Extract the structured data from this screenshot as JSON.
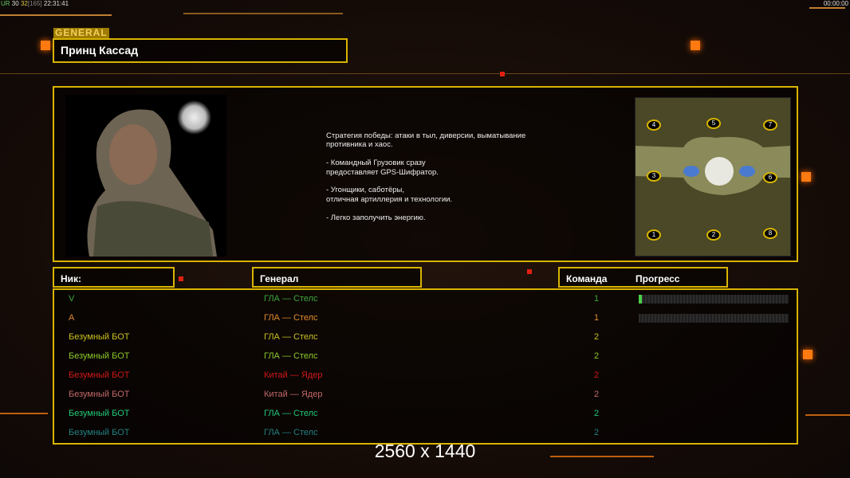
{
  "hud": {
    "left_parts": [
      "UR",
      "30",
      "32",
      "[165]",
      "22:31:41"
    ],
    "right_time": "00:00:00"
  },
  "general_tab": "GENERAL",
  "general_name": "Принц Кассад",
  "description": "Стратегия победы: атаки в тыл, диверсии, выматывание\n противника и хаос.\n\n- Командный Грузовик сразу\nпредоставляет GPS-Шифратор.\n\n- Угонщики, саботёры,\nотличная артиллерия и технологии.\n\n- Легко заполучить энергию.",
  "map": {
    "start_positions": [
      "1",
      "2",
      "3",
      "4",
      "5",
      "6",
      "7",
      "8"
    ]
  },
  "headers": {
    "nick": "Ник:",
    "general": "Генерал",
    "team": "Команда",
    "progress": "Прогресс"
  },
  "players": [
    {
      "nick": "V",
      "general": "ГЛА — Стелс",
      "team": "1",
      "color": "#3aa83a",
      "progress": 0.02
    },
    {
      "nick": "A",
      "general": "ГЛА — Стелс",
      "team": "1",
      "color": "#e08a2a",
      "progress": 0
    },
    {
      "nick": "Безумный БОТ",
      "general": "ГЛА — Стелс",
      "team": "2",
      "color": "#c8c020"
    },
    {
      "nick": "Безумный БОТ",
      "general": "ГЛА — Стелс",
      "team": "2",
      "color": "#8cc828"
    },
    {
      "nick": "Безумный БОТ",
      "general": "Китай — Ядер",
      "team": "2",
      "color": "#d01818"
    },
    {
      "nick": "Безумный БОТ",
      "general": "Китай — Ядер",
      "team": "2",
      "color": "#c06868"
    },
    {
      "nick": "Безумный БОТ",
      "general": "ГЛА — Стелс",
      "team": "2",
      "color": "#20c878"
    },
    {
      "nick": "Безумный БОТ",
      "general": "ГЛА — Стелс",
      "team": "2",
      "color": "#208080"
    }
  ],
  "resolution": "2560 x 1440"
}
